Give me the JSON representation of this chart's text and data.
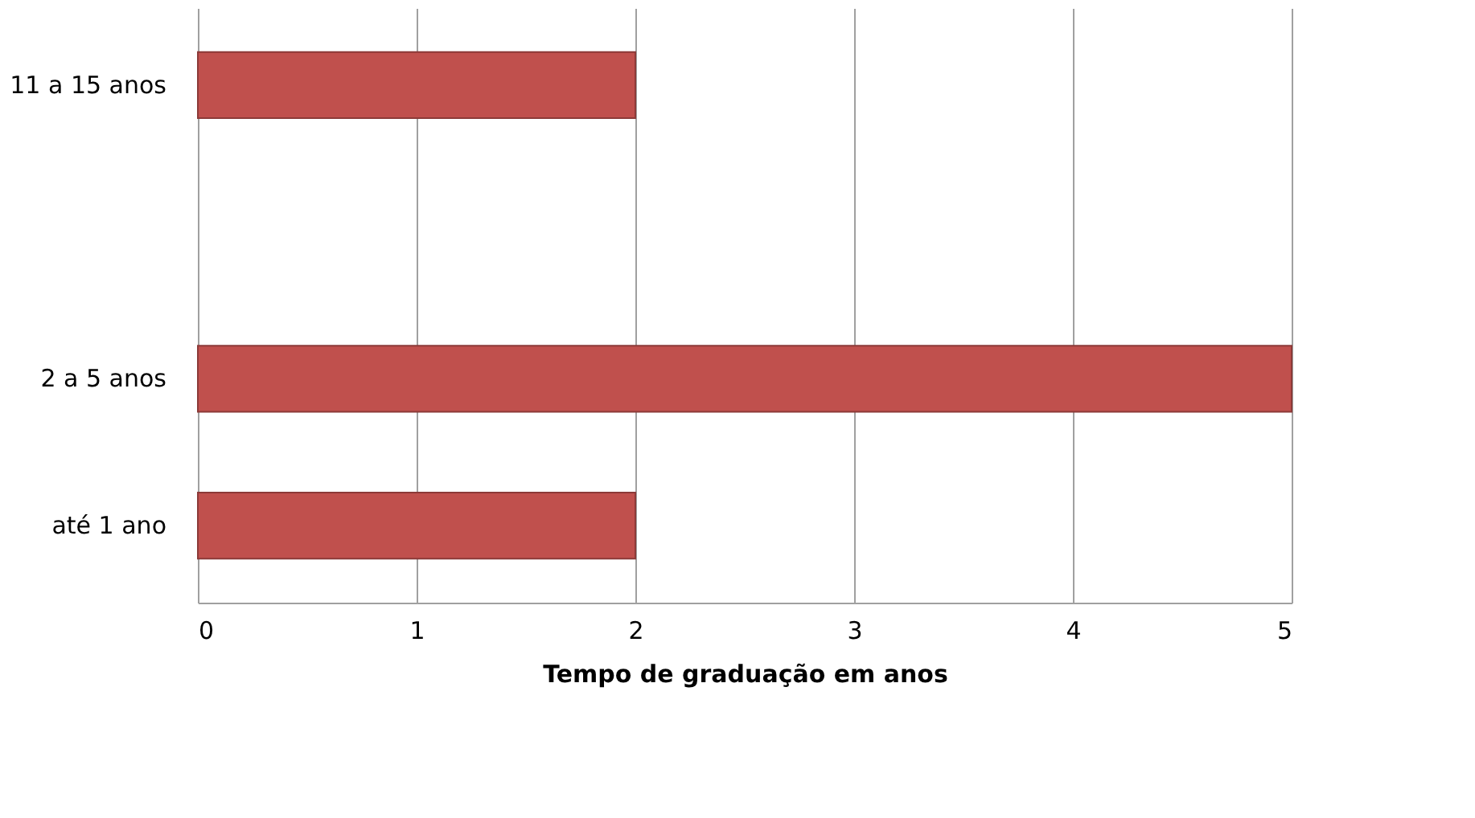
{
  "chart_data": {
    "type": "bar",
    "orientation": "horizontal",
    "xlabel": "Tempo de graduação em anos",
    "categories": [
      "11 a 15 anos",
      null,
      "2 a 5 anos",
      "até 1 ano"
    ],
    "values": [
      2,
      null,
      5,
      2
    ],
    "color": "#c0504d",
    "xlim": [
      0,
      5
    ],
    "xticks": [
      0,
      1,
      2,
      3,
      4,
      5
    ],
    "grid": "x"
  }
}
